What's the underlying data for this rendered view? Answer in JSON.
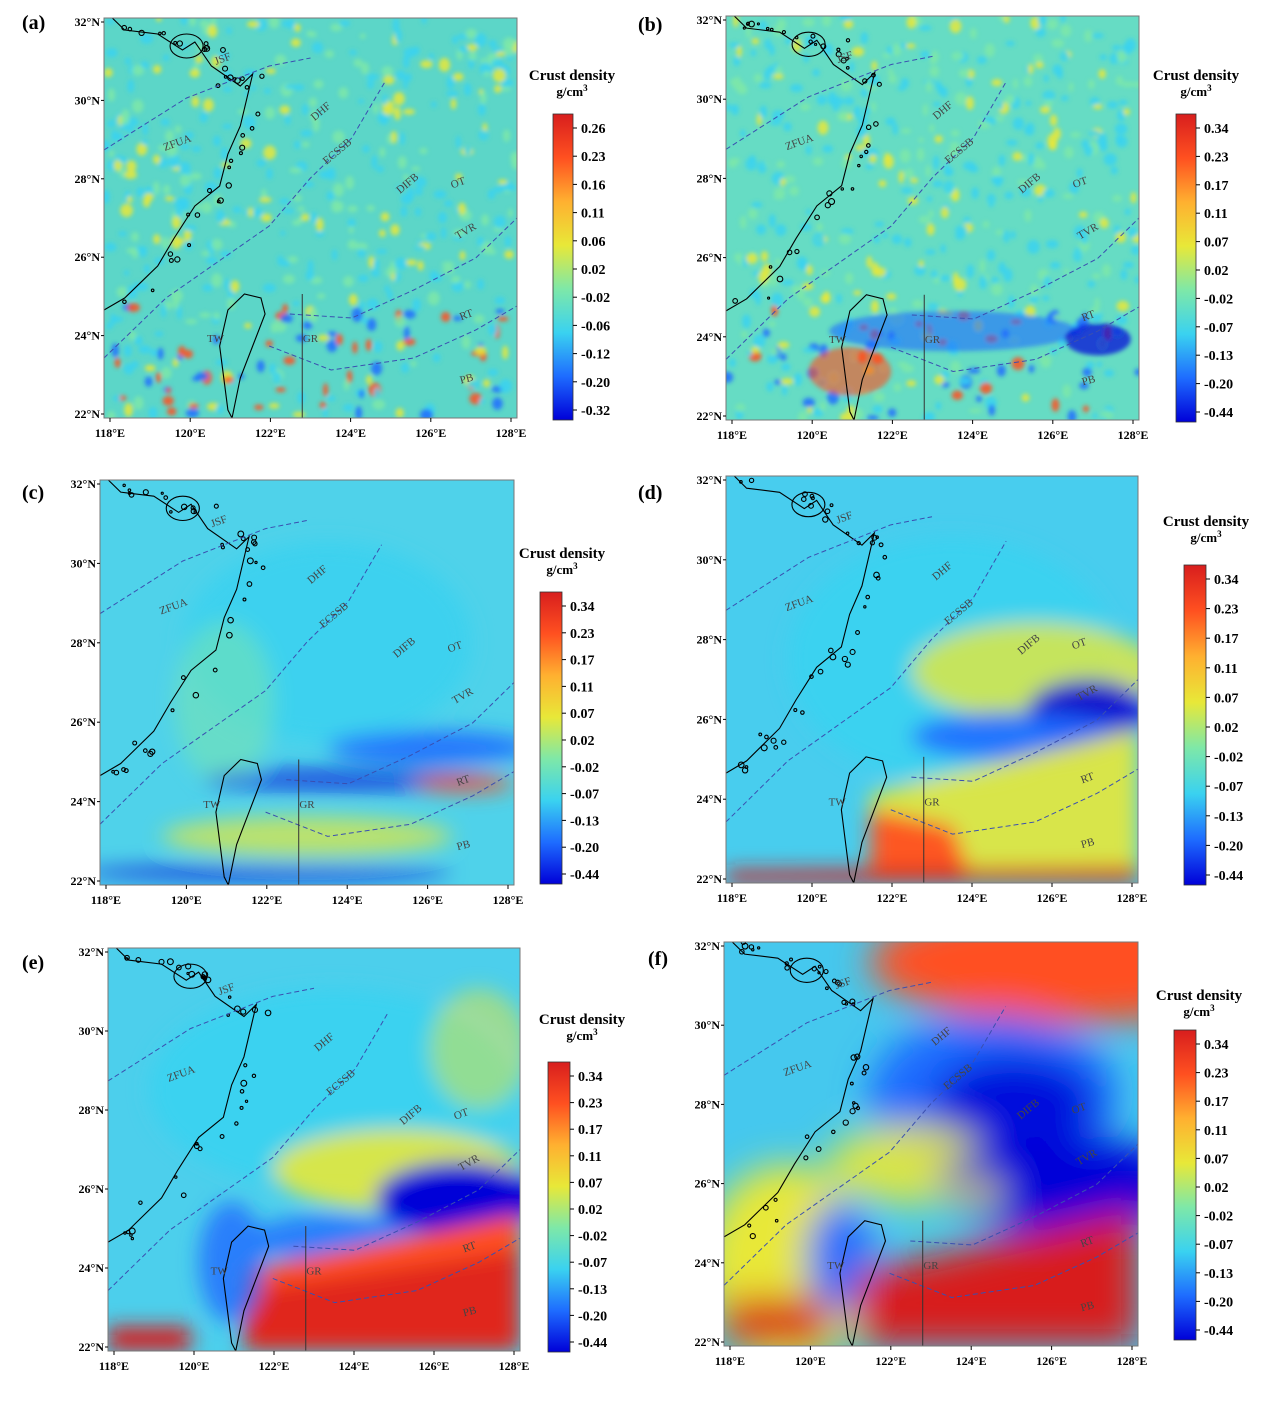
{
  "colorbar_title": "Crust density",
  "colorbar_unit": "g/cm",
  "colorbar_unit_sup": "3",
  "lat_labels": [
    "32°N",
    "30°N",
    "28°N",
    "26°N",
    "24°N",
    "22°N"
  ],
  "lon_labels": [
    "118°E",
    "120°E",
    "122°E",
    "124°E",
    "126°E",
    "128°E"
  ],
  "map_labels": [
    "JSF",
    "ZFUA",
    "DHF",
    "ECSSB",
    "DIFB",
    "OT",
    "TVR",
    "RT",
    "TW",
    "GR",
    "PB"
  ],
  "colormap": [
    "#0000d8",
    "#1e6cff",
    "#3ad2f0",
    "#7ee8a8",
    "#e8e838",
    "#ffb030",
    "#ff5020",
    "#d81e1e"
  ],
  "panels": [
    {
      "label": "(a)",
      "ticks": [
        "0.26",
        "0.23",
        "0.16",
        "0.11",
        "0.06",
        "0.02",
        "-0.02",
        "-0.06",
        "-0.12",
        "-0.20",
        "-0.32"
      ]
    },
    {
      "label": "(b)",
      "ticks": [
        "0.34",
        "0.23",
        "0.17",
        "0.11",
        "0.07",
        "0.02",
        "-0.02",
        "-0.07",
        "-0.13",
        "-0.20",
        "-0.44"
      ]
    },
    {
      "label": "(c)",
      "ticks": [
        "0.34",
        "0.23",
        "0.17",
        "0.11",
        "0.07",
        "0.02",
        "-0.02",
        "-0.07",
        "-0.13",
        "-0.20",
        "-0.44"
      ]
    },
    {
      "label": "(d)",
      "ticks": [
        "0.34",
        "0.23",
        "0.17",
        "0.11",
        "0.07",
        "0.02",
        "-0.02",
        "-0.07",
        "-0.13",
        "-0.20",
        "-0.44"
      ]
    },
    {
      "label": "(e)",
      "ticks": [
        "0.34",
        "0.23",
        "0.17",
        "0.11",
        "0.07",
        "0.02",
        "-0.02",
        "-0.07",
        "-0.13",
        "-0.20",
        "-0.44"
      ]
    },
    {
      "label": "(f)",
      "ticks": [
        "0.34",
        "0.23",
        "0.17",
        "0.11",
        "0.07",
        "0.02",
        "-0.02",
        "-0.07",
        "-0.13",
        "-0.20",
        "-0.44"
      ]
    }
  ]
}
